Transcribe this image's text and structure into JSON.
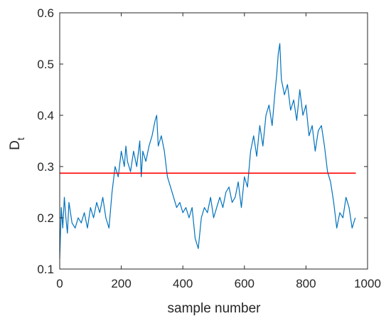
{
  "chart_data": {
    "type": "line",
    "xlabel": "sample number",
    "ylabel": "D",
    "ylabel_subscript": "t",
    "xlim": [
      0,
      1000
    ],
    "ylim": [
      0.1,
      0.6
    ],
    "x_ticks": [
      0,
      200,
      400,
      600,
      800,
      1000
    ],
    "x_tick_labels": [
      "0",
      "200",
      "400",
      "600",
      "800",
      "1000"
    ],
    "y_ticks": [
      0.1,
      0.2,
      0.3,
      0.4,
      0.5,
      0.6
    ],
    "y_tick_labels": [
      "0.1",
      "0.2",
      "0.3",
      "0.4",
      "0.5",
      "0.6"
    ],
    "grid": false,
    "colors": {
      "series": "#0072BD",
      "threshold": "#FF0000",
      "axis": "#262626"
    },
    "series": [
      {
        "x": [
          0,
          5,
          10,
          15,
          20,
          25,
          30,
          40,
          50,
          60,
          70,
          80,
          90,
          100,
          110,
          120,
          130,
          140,
          150,
          160,
          170,
          180,
          190,
          200,
          210,
          215,
          220,
          230,
          240,
          250,
          260,
          265,
          270,
          280,
          290,
          300,
          310,
          315,
          320,
          330,
          340,
          350,
          360,
          370,
          380,
          390,
          400,
          410,
          420,
          430,
          440,
          450,
          460,
          470,
          480,
          490,
          500,
          510,
          520,
          530,
          540,
          550,
          560,
          570,
          580,
          590,
          600,
          610,
          620,
          630,
          640,
          650,
          660,
          670,
          680,
          690,
          700,
          705,
          710,
          715,
          720,
          730,
          740,
          750,
          760,
          770,
          780,
          790,
          800,
          810,
          820,
          830,
          840,
          850,
          860,
          870,
          880,
          890,
          900,
          910,
          920,
          930,
          940,
          950,
          960
        ],
        "values": [
          0.12,
          0.22,
          0.18,
          0.24,
          0.2,
          0.17,
          0.23,
          0.19,
          0.18,
          0.2,
          0.19,
          0.21,
          0.18,
          0.22,
          0.2,
          0.23,
          0.21,
          0.24,
          0.2,
          0.18,
          0.25,
          0.3,
          0.28,
          0.33,
          0.3,
          0.34,
          0.31,
          0.29,
          0.33,
          0.3,
          0.35,
          0.28,
          0.33,
          0.31,
          0.34,
          0.36,
          0.39,
          0.4,
          0.34,
          0.36,
          0.33,
          0.28,
          0.26,
          0.24,
          0.22,
          0.23,
          0.21,
          0.22,
          0.2,
          0.22,
          0.16,
          0.14,
          0.2,
          0.22,
          0.21,
          0.24,
          0.2,
          0.22,
          0.24,
          0.22,
          0.25,
          0.26,
          0.23,
          0.24,
          0.27,
          0.22,
          0.28,
          0.26,
          0.33,
          0.36,
          0.32,
          0.38,
          0.34,
          0.4,
          0.42,
          0.38,
          0.45,
          0.48,
          0.52,
          0.54,
          0.47,
          0.44,
          0.46,
          0.41,
          0.43,
          0.39,
          0.45,
          0.4,
          0.42,
          0.36,
          0.38,
          0.33,
          0.37,
          0.38,
          0.34,
          0.29,
          0.27,
          0.23,
          0.18,
          0.21,
          0.2,
          0.24,
          0.22,
          0.18,
          0.2
        ]
      }
    ],
    "threshold": {
      "y": 0.287,
      "x_start": 0,
      "x_end": 962
    }
  }
}
